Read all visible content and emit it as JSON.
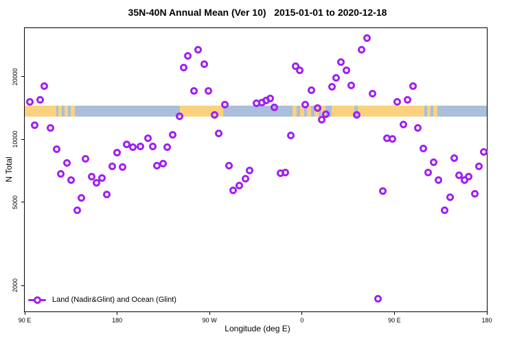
{
  "header": {
    "title": "35N-40N Annual Mean (Ver 10)   2015-01-01 to 2020-12-18"
  },
  "legend": {
    "label": "Land (Nadir&Glint) and Ocean (Glint)"
  },
  "colors": {
    "marker": "#A020F0",
    "land": "#FAD27F",
    "ocean": "#A9BFDB",
    "axis": "#000000",
    "background": "#ffffff"
  },
  "chart_data": {
    "type": "scatter",
    "title": "35N-40N Annual Mean (Ver 10)   2015-01-01 to 2020-12-18",
    "xlabel": "Longitude (deg E)",
    "ylabel": "N Total",
    "grid": false,
    "legend_position": "bottom-left",
    "x_axis": {
      "min": 90,
      "max": 540,
      "ticks": [
        90,
        180,
        270,
        360,
        450,
        540
      ],
      "tick_labels": [
        "90 E",
        "180",
        "90 W",
        "0",
        "90 E",
        "180"
      ],
      "note": "longitude axis wraps eastward: 90E to 180 to 90W to 0 to 90E to 180"
    },
    "y_axis": {
      "scale": "log10",
      "min": 1500,
      "max": 34200,
      "ticks": [
        2000,
        5000,
        10000,
        20000
      ],
      "tick_labels": [
        "2000",
        "5000",
        "10000",
        "20000"
      ]
    },
    "map_strip": {
      "description": "land/ocean reference band drawn across plot",
      "n_top": 14580,
      "n_bottom": 12920,
      "segments": [
        {
          "from": 90,
          "to": 121,
          "surface": "land"
        },
        {
          "from": 121,
          "to": 123,
          "surface": "ocean"
        },
        {
          "from": 123,
          "to": 126,
          "surface": "land"
        },
        {
          "from": 126,
          "to": 129,
          "surface": "ocean"
        },
        {
          "from": 129,
          "to": 132,
          "surface": "land"
        },
        {
          "from": 132,
          "to": 135,
          "surface": "ocean"
        },
        {
          "from": 135,
          "to": 139,
          "surface": "land"
        },
        {
          "from": 139,
          "to": 241,
          "surface": "ocean"
        },
        {
          "from": 241,
          "to": 283,
          "surface": "land"
        },
        {
          "from": 283,
          "to": 351,
          "surface": "ocean"
        },
        {
          "from": 351,
          "to": 355,
          "surface": "land"
        },
        {
          "from": 355,
          "to": 358,
          "surface": "ocean"
        },
        {
          "from": 358,
          "to": 362,
          "surface": "land"
        },
        {
          "from": 362,
          "to": 365,
          "surface": "ocean"
        },
        {
          "from": 365,
          "to": 369,
          "surface": "land"
        },
        {
          "from": 369,
          "to": 372,
          "surface": "ocean"
        },
        {
          "from": 372,
          "to": 376,
          "surface": "land"
        },
        {
          "from": 376,
          "to": 379,
          "surface": "ocean"
        },
        {
          "from": 379,
          "to": 383,
          "surface": "land"
        },
        {
          "from": 383,
          "to": 389,
          "surface": "ocean"
        },
        {
          "from": 389,
          "to": 411,
          "surface": "land"
        },
        {
          "from": 411,
          "to": 414,
          "surface": "ocean"
        },
        {
          "from": 414,
          "to": 479,
          "surface": "land"
        },
        {
          "from": 479,
          "to": 482,
          "surface": "ocean"
        },
        {
          "from": 482,
          "to": 485,
          "surface": "land"
        },
        {
          "from": 485,
          "to": 488,
          "surface": "ocean"
        },
        {
          "from": 488,
          "to": 492,
          "surface": "land"
        },
        {
          "from": 492,
          "to": 540,
          "surface": "ocean"
        }
      ]
    },
    "series": [
      {
        "name": "Land (Nadir&Glint) and Ocean (Glint)",
        "marker": "open-circle",
        "points": [
          [
            109,
            18000
          ],
          [
            95,
            15140
          ],
          [
            105,
            15500
          ],
          [
            100,
            11720
          ],
          [
            115,
            11370
          ],
          [
            121,
            9000
          ],
          [
            131,
            7740
          ],
          [
            149,
            8100
          ],
          [
            175,
            7460
          ],
          [
            185,
            7400
          ],
          [
            180,
            8670
          ],
          [
            189,
            9490
          ],
          [
            195,
            9210
          ],
          [
            125,
            6860
          ],
          [
            135,
            6370
          ],
          [
            155,
            6660
          ],
          [
            160,
            6220
          ],
          [
            165,
            6560
          ],
          [
            170,
            5440
          ],
          [
            145,
            5270
          ],
          [
            141,
            4570
          ],
          [
            259,
            26850
          ],
          [
            249,
            25100
          ],
          [
            265,
            23060
          ],
          [
            245,
            22200
          ],
          [
            255,
            17070
          ],
          [
            269,
            17070
          ],
          [
            285,
            14700
          ],
          [
            275,
            13120
          ],
          [
            241,
            12930
          ],
          [
            234,
            10550
          ],
          [
            279,
            10710
          ],
          [
            210,
            10160
          ],
          [
            203,
            9270
          ],
          [
            215,
            9270
          ],
          [
            229,
            9210
          ],
          [
            225,
            7690
          ],
          [
            219,
            7510
          ],
          [
            289,
            7510
          ],
          [
            309,
            7130
          ],
          [
            305,
            6510
          ],
          [
            299,
            6040
          ],
          [
            293,
            5690
          ],
          [
            423,
            30700
          ],
          [
            418,
            26850
          ],
          [
            398,
            23600
          ],
          [
            403,
            21400
          ],
          [
            393,
            19700
          ],
          [
            389,
            17860
          ],
          [
            408,
            18130
          ],
          [
            369,
            17200
          ],
          [
            354,
            22550
          ],
          [
            358,
            21400
          ],
          [
            429,
            16560
          ],
          [
            363,
            14700
          ],
          [
            375,
            14150
          ],
          [
            383,
            13220
          ],
          [
            379,
            12450
          ],
          [
            413,
            13120
          ],
          [
            329,
            15700
          ],
          [
            325,
            15370
          ],
          [
            321,
            15030
          ],
          [
            316,
            14920
          ],
          [
            333,
            14260
          ],
          [
            349,
            10470
          ],
          [
            339,
            6920
          ],
          [
            344,
            6970
          ],
          [
            439,
            5650
          ],
          [
            434,
            1730
          ],
          [
            468,
            18000
          ],
          [
            453,
            15140
          ],
          [
            463,
            15500
          ],
          [
            459,
            11800
          ],
          [
            473,
            11370
          ],
          [
            443,
            10160
          ],
          [
            448,
            10080
          ],
          [
            478,
            9070
          ],
          [
            488,
            7800
          ],
          [
            508,
            8160
          ],
          [
            537,
            8740
          ],
          [
            532,
            7460
          ],
          [
            483,
            6970
          ],
          [
            493,
            6410
          ],
          [
            499,
            4570
          ],
          [
            504,
            5310
          ],
          [
            513,
            6760
          ],
          [
            522,
            6660
          ],
          [
            518,
            6370
          ],
          [
            528,
            5480
          ]
        ]
      }
    ]
  }
}
